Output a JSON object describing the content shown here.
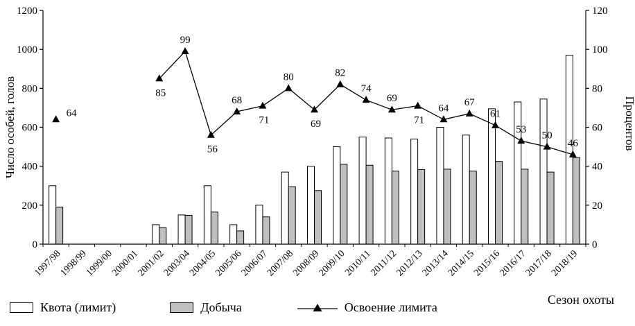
{
  "chart_data": {
    "type": "bar",
    "title": "",
    "categories": [
      "1997/98",
      "1998/99",
      "1999/00",
      "2000/01",
      "2001/02",
      "2003/04",
      "2004/05",
      "2005/06",
      "2006/07",
      "2007/08",
      "2008/09",
      "2009/10",
      "2010/11",
      "2011/12",
      "2012/13",
      "2013/14",
      "2014/15",
      "2015/16",
      "2016/17",
      "2017/18",
      "2018/19"
    ],
    "series": [
      {
        "name": "Квота (лимит)",
        "kind": "bar",
        "axis": "left",
        "color": "#ffffff",
        "values": [
          300,
          null,
          null,
          null,
          100,
          150,
          300,
          100,
          200,
          370,
          400,
          500,
          550,
          545,
          540,
          600,
          560,
          695,
          730,
          745,
          970
        ]
      },
      {
        "name": "Добыча",
        "kind": "bar",
        "axis": "left",
        "color": "#bfbfbf",
        "values": [
          190,
          null,
          null,
          null,
          85,
          148,
          165,
          68,
          140,
          295,
          275,
          410,
          405,
          375,
          383,
          385,
          375,
          425,
          385,
          370,
          445
        ]
      },
      {
        "name": "Освоение лимита",
        "kind": "line",
        "axis": "right",
        "color": "#000000",
        "values": [
          64,
          null,
          null,
          null,
          85,
          99,
          56,
          68,
          71,
          80,
          69,
          82,
          74,
          69,
          71,
          64,
          67,
          61,
          53,
          50,
          46
        ],
        "label_positions": [
          "right",
          null,
          null,
          null,
          "below",
          "above",
          "below",
          "above",
          "below",
          "above",
          "below",
          "above",
          "above",
          "above",
          "below",
          "above",
          "above",
          "above",
          "above",
          "above",
          "above"
        ]
      }
    ],
    "left_axis": {
      "label": "Число особей, голов",
      "min": 0,
      "max": 1200,
      "step": 200
    },
    "right_axis": {
      "label": "Процентов",
      "min": 0,
      "max": 120,
      "step": 20
    },
    "x_axis": {
      "label": "Сезон охоты"
    },
    "legend_position": "bottom",
    "grid": false
  }
}
